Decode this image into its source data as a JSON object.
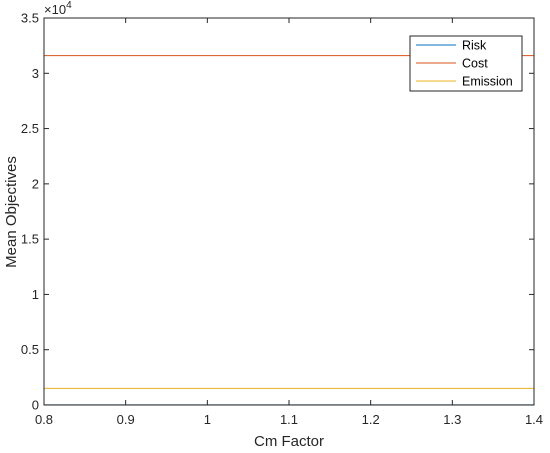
{
  "chart_data": {
    "type": "line",
    "xlabel": "Cm Factor",
    "ylabel": "Mean Objectives",
    "xlim": [
      0.8,
      1.4
    ],
    "ylim": [
      0,
      35000
    ],
    "x_ticks": [
      "0.8",
      "0.9",
      "1",
      "1.1",
      "1.2",
      "1.3",
      "1.4"
    ],
    "x_tick_values": [
      0.8,
      0.9,
      1.0,
      1.1,
      1.2,
      1.3,
      1.4
    ],
    "y_ticks": [
      "0",
      "0.5",
      "1",
      "1.5",
      "2",
      "2.5",
      "3",
      "3.5"
    ],
    "y_tick_values": [
      0,
      5000,
      10000,
      15000,
      20000,
      25000,
      30000,
      35000
    ],
    "y_multiplier": {
      "base": "×10",
      "exponent": "4"
    },
    "grid": false,
    "legend_position": "top-right",
    "x": [
      0.8,
      1.4
    ],
    "series": [
      {
        "name": "Risk",
        "color": "#0072BD",
        "values": [
          10,
          10
        ]
      },
      {
        "name": "Cost",
        "color": "#D95319",
        "values": [
          31600,
          31600
        ]
      },
      {
        "name": "Emission",
        "color": "#EDB120",
        "values": [
          1500,
          1500
        ]
      }
    ]
  }
}
